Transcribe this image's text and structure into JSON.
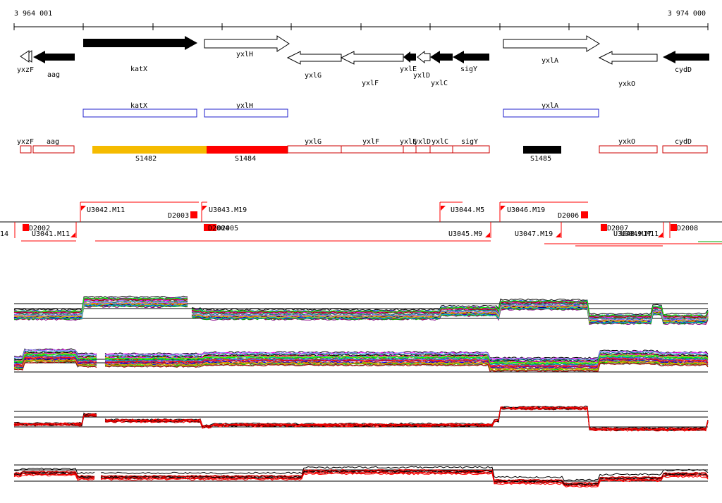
{
  "coords": {
    "left": "3 964 001",
    "right": "3 974 000"
  },
  "colors": {
    "gene_fill": "#000000",
    "cds_outline": "#2222cc",
    "region_outline": "#cc0000",
    "segment_yellow": "#f5bb00",
    "segment_red": "#ff0000",
    "segment_black": "#000000",
    "marker_red": "#ff0000"
  },
  "genes": [
    {
      "name": "yxzF",
      "strand": "-",
      "filled": false
    },
    {
      "name": "aag",
      "strand": "-",
      "filled": true
    },
    {
      "name": "katX",
      "strand": "+",
      "filled": true
    },
    {
      "name": "yxlH",
      "strand": "+",
      "filled": false
    },
    {
      "name": "yxlG",
      "strand": "-",
      "filled": false
    },
    {
      "name": "yxlF",
      "strand": "-",
      "filled": false
    },
    {
      "name": "yxlE",
      "strand": "-",
      "filled": true
    },
    {
      "name": "yxlD",
      "strand": "-",
      "filled": false
    },
    {
      "name": "yxlC",
      "strand": "-",
      "filled": true
    },
    {
      "name": "sigY",
      "strand": "-",
      "filled": true
    },
    {
      "name": "yxlA",
      "strand": "+",
      "filled": false
    },
    {
      "name": "yxkO",
      "strand": "-",
      "filled": false
    },
    {
      "name": "cydD",
      "strand": "-",
      "filled": true
    }
  ],
  "cds_boxes": [
    "katX",
    "yxlH",
    "yxlA"
  ],
  "regions": [
    "yxzF",
    "aag",
    "yxlG",
    "yxlF",
    "yxlE",
    "yxlD",
    "yxlC",
    "sigY",
    "yxkO",
    "cydD"
  ],
  "segments": [
    {
      "name": "S1482",
      "color": "yellow"
    },
    {
      "name": "S1484",
      "color": "red"
    },
    {
      "name": "S1485",
      "color": "black"
    }
  ],
  "upper_features": [
    "U3042.M11",
    "D2003",
    "U3043.M19",
    "U3044.M5",
    "U3046.M19",
    "D2006"
  ],
  "lower_features": [
    "14",
    "D2002",
    "U3041.M11",
    "D2004",
    "D2005",
    "U3045.M9",
    "U3047.M19",
    "D2007",
    "U3048.M17",
    "U3049.M11",
    "D2008"
  ]
}
